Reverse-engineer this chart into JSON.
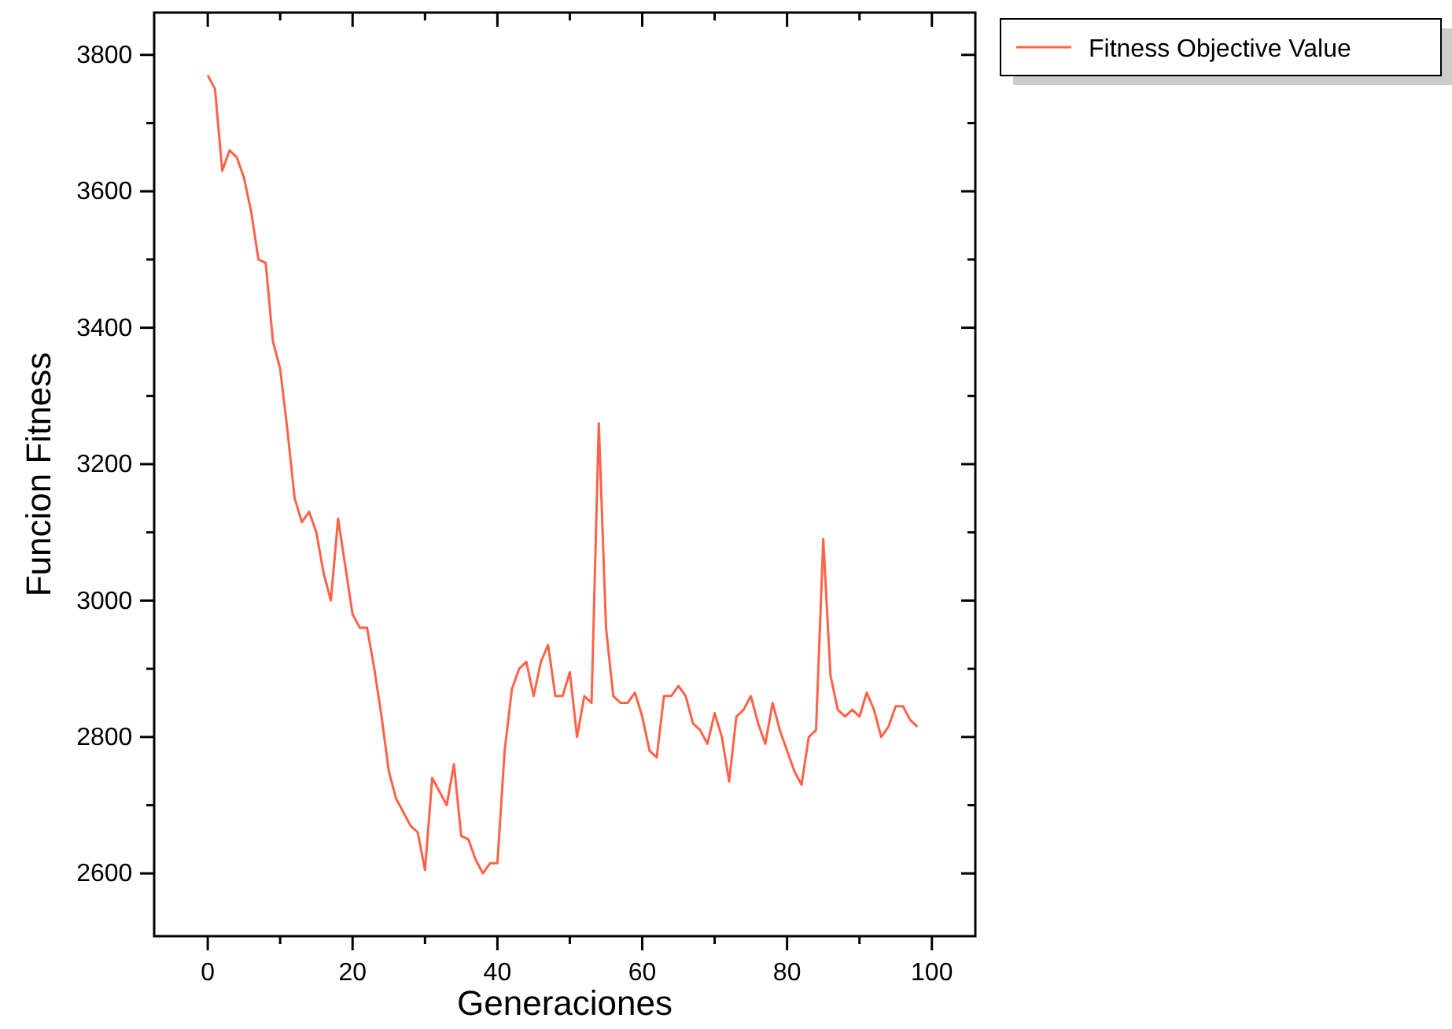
{
  "chart_data": {
    "type": "line",
    "xlabel": "Generaciones",
    "ylabel": "Funcion Fitness",
    "x": [
      0,
      1,
      2,
      3,
      4,
      5,
      6,
      7,
      8,
      9,
      10,
      11,
      12,
      13,
      14,
      15,
      16,
      17,
      18,
      19,
      20,
      21,
      22,
      23,
      24,
      25,
      26,
      27,
      28,
      29,
      30,
      31,
      32,
      33,
      34,
      35,
      36,
      37,
      38,
      39,
      40,
      41,
      42,
      43,
      44,
      45,
      46,
      47,
      48,
      49,
      50,
      51,
      52,
      53,
      54,
      55,
      56,
      57,
      58,
      59,
      60,
      61,
      62,
      63,
      64,
      65,
      66,
      67,
      68,
      69,
      70,
      71,
      72,
      73,
      74,
      75,
      76,
      77,
      78,
      79,
      80,
      81,
      82,
      83,
      84,
      85,
      86,
      87,
      88,
      89,
      90,
      91,
      92,
      93,
      94,
      95,
      96,
      97,
      98
    ],
    "series": [
      {
        "name": "Fitness Objective Value",
        "color": "#ff6347",
        "values": [
          3770,
          3750,
          3630,
          3660,
          3650,
          3620,
          3570,
          3500,
          3495,
          3380,
          3340,
          3250,
          3150,
          3115,
          3130,
          3100,
          3040,
          3000,
          3120,
          3050,
          2980,
          2960,
          2960,
          2900,
          2830,
          2750,
          2710,
          2690,
          2670,
          2660,
          2605,
          2740,
          2720,
          2700,
          2760,
          2655,
          2650,
          2620,
          2600,
          2615,
          2615,
          2780,
          2870,
          2900,
          2910,
          2860,
          2910,
          2935,
          2860,
          2860,
          2895,
          2800,
          2860,
          2850,
          3260,
          2960,
          2860,
          2850,
          2850,
          2865,
          2830,
          2780,
          2770,
          2860,
          2860,
          2875,
          2860,
          2820,
          2810,
          2790,
          2835,
          2800,
          2735,
          2830,
          2840,
          2860,
          2820,
          2790,
          2850,
          2810,
          2780,
          2750,
          2730,
          2800,
          2810,
          3090,
          2890,
          2840,
          2830,
          2840,
          2830,
          2865,
          2840,
          2800,
          2815,
          2845,
          2845,
          2825,
          2815
        ]
      }
    ],
    "xlim": [
      -7.4,
      106
    ],
    "ylim": [
      2508,
      3862
    ],
    "xticks": [
      0,
      {
        "value": 10,
        "label": null
      },
      20,
      {
        "value": 30,
        "label": null
      },
      40,
      {
        "value": 50,
        "label": null
      },
      60,
      {
        "value": 70,
        "label": null
      },
      80,
      {
        "value": 90,
        "label": null
      },
      100
    ],
    "yticks": [
      2600,
      {
        "value": 2700,
        "label": null
      },
      2800,
      {
        "value": 2900,
        "label": null
      },
      3000,
      {
        "value": 3100,
        "label": null
      },
      3200,
      {
        "value": 3300,
        "label": null
      },
      3400,
      {
        "value": 3500,
        "label": null
      },
      3600,
      {
        "value": 3700,
        "label": null
      },
      3800
    ],
    "grid": false,
    "legend": "top right",
    "marker": "none",
    "line_style": "solid"
  }
}
